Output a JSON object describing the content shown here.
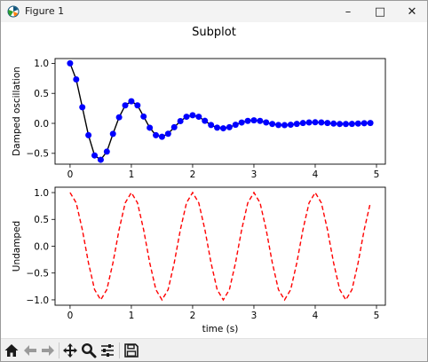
{
  "window": {
    "title": "Figure 1",
    "controls": {
      "minimize": "–",
      "maximize": "□",
      "close": "✕"
    }
  },
  "figure": {
    "suptitle": "Subplot"
  },
  "toolbar": {
    "buttons": [
      "home-icon",
      "back-arrow-icon",
      "forward-arrow-icon",
      "pan-icon",
      "zoom-icon",
      "configure-subplots-icon",
      "save-icon"
    ]
  },
  "chart_data": [
    {
      "type": "line",
      "title": "",
      "xlabel": "",
      "ylabel": "Damped oscillation",
      "xlim": [
        -0.245,
        5.145
      ],
      "ylim": [
        -0.68,
        1.08
      ],
      "xticks": [
        0,
        1,
        2,
        3,
        4,
        5
      ],
      "yticks": [
        1.0,
        0.5,
        0.0,
        -0.5
      ],
      "x_tick_labels": [
        "0",
        "1",
        "2",
        "3",
        "4",
        "5"
      ],
      "y_tick_labels": [
        "1.0",
        "0.5",
        "0.0",
        "−0.5"
      ],
      "color": "#0000ff",
      "line_color": "#000000",
      "marker": "o",
      "x": [
        0.0,
        0.1,
        0.2,
        0.3,
        0.4,
        0.5,
        0.6,
        0.7,
        0.8,
        0.9,
        1.0,
        1.1,
        1.2,
        1.3,
        1.4,
        1.5,
        1.6,
        1.7,
        1.8,
        1.9,
        2.0,
        2.1,
        2.2,
        2.3,
        2.4,
        2.5,
        2.6,
        2.7,
        2.8,
        2.9,
        3.0,
        3.1,
        3.2,
        3.3,
        3.4,
        3.5,
        3.6,
        3.7,
        3.8,
        3.9,
        4.0,
        4.1,
        4.2,
        4.3,
        4.4,
        4.5,
        4.6,
        4.7,
        4.8,
        4.9
      ],
      "y": [
        1.0,
        0.732,
        0.268,
        -0.198,
        -0.535,
        -0.607,
        -0.472,
        -0.175,
        0.101,
        0.3,
        0.368,
        0.3,
        0.114,
        -0.073,
        -0.197,
        -0.223,
        -0.173,
        -0.064,
        0.037,
        0.11,
        0.135,
        0.11,
        0.042,
        -0.027,
        -0.072,
        -0.082,
        -0.064,
        -0.024,
        0.014,
        0.041,
        0.05,
        0.041,
        0.015,
        -0.01,
        -0.027,
        -0.03,
        -0.023,
        -0.009,
        0.005,
        0.015,
        0.018,
        0.015,
        0.006,
        -0.004,
        -0.01,
        -0.011,
        -0.009,
        -0.003,
        0.002,
        0.006
      ],
      "grid": false
    },
    {
      "type": "line",
      "title": "",
      "xlabel": "time (s)",
      "ylabel": "Undamped",
      "xlim": [
        -0.245,
        5.145
      ],
      "ylim": [
        -1.1,
        1.1
      ],
      "xticks": [
        0,
        1,
        2,
        3,
        4,
        5
      ],
      "yticks": [
        1.0,
        0.5,
        0.0,
        -0.5,
        -1.0
      ],
      "x_tick_labels": [
        "0",
        "1",
        "2",
        "3",
        "4",
        "5"
      ],
      "y_tick_labels": [
        "1.0",
        "0.5",
        "0.0",
        "−0.5",
        "−1.0"
      ],
      "color": "#ff0000",
      "linestyle": "dashed",
      "x": [
        0.0,
        0.1,
        0.2,
        0.3,
        0.4,
        0.5,
        0.6,
        0.7,
        0.8,
        0.9,
        1.0,
        1.1,
        1.2,
        1.3,
        1.4,
        1.5,
        1.6,
        1.7,
        1.8,
        1.9,
        2.0,
        2.1,
        2.2,
        2.3,
        2.4,
        2.5,
        2.6,
        2.7,
        2.8,
        2.9,
        3.0,
        3.1,
        3.2,
        3.3,
        3.4,
        3.5,
        3.6,
        3.7,
        3.8,
        3.9,
        4.0,
        4.1,
        4.2,
        4.3,
        4.4,
        4.5,
        4.6,
        4.7,
        4.8,
        4.9
      ],
      "y": [
        1.0,
        0.809,
        0.309,
        -0.309,
        -0.809,
        -1.0,
        -0.809,
        -0.309,
        0.309,
        0.809,
        1.0,
        0.809,
        0.309,
        -0.309,
        -0.809,
        -1.0,
        -0.809,
        -0.309,
        0.309,
        0.809,
        1.0,
        0.809,
        0.309,
        -0.309,
        -0.809,
        -1.0,
        -0.809,
        -0.309,
        0.309,
        0.809,
        1.0,
        0.809,
        0.309,
        -0.309,
        -0.809,
        -1.0,
        -0.809,
        -0.309,
        0.309,
        0.809,
        1.0,
        0.809,
        0.309,
        -0.309,
        -0.809,
        -1.0,
        -0.809,
        -0.309,
        0.309,
        0.809
      ],
      "grid": false
    }
  ]
}
